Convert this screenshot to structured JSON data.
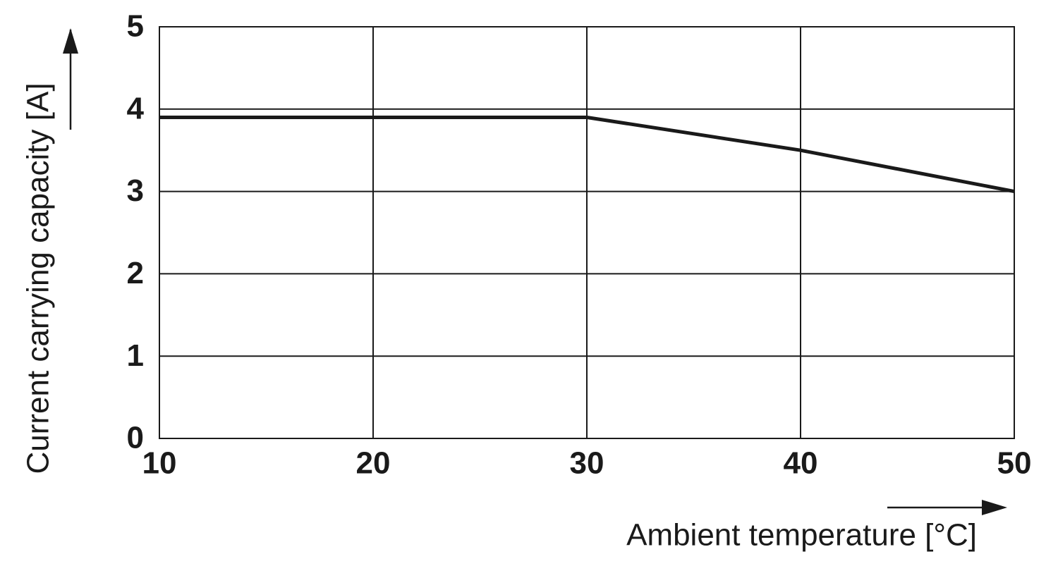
{
  "chart_data": {
    "type": "line",
    "x_label": "Ambient temperature [°C]",
    "y_label": "Current carrying capacity [A]",
    "x": [
      10,
      30,
      40,
      50
    ],
    "series": [
      {
        "color": "#1a1a1a",
        "values": [
          3.9,
          3.9,
          3.5,
          3.0
        ]
      }
    ],
    "xlim": [
      10,
      50
    ],
    "xticks": [
      10,
      20,
      30,
      40,
      50
    ],
    "ylim": [
      0,
      5
    ],
    "yticks": [
      0,
      1,
      2,
      3,
      4,
      5
    ],
    "grid": true
  }
}
